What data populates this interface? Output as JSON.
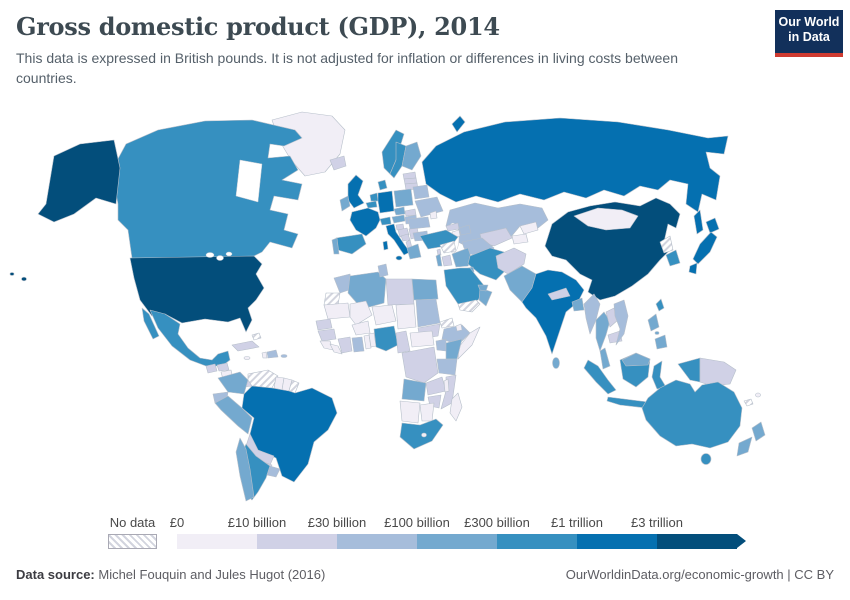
{
  "header": {
    "title": "Gross domestic product (GDP), 2014",
    "subtitle": "This data is expressed in British pounds. It is not adjusted for inflation or differences in living costs between countries.",
    "logo_line1": "Our World",
    "logo_line2": "in Data",
    "logo_bg": "#12305b",
    "logo_stripe": "#cf3b31"
  },
  "legend": {
    "no_data_label": "No data",
    "tick_labels": [
      "£0",
      "£10 billion",
      "£30 billion",
      "£100 billion",
      "£300 billion",
      "£1 trillion",
      "£3 trillion"
    ],
    "colors": [
      "#f1eef6",
      "#d0d1e6",
      "#a6bddb",
      "#74a9cf",
      "#3690c0",
      "#0570b0",
      "#034e7b"
    ],
    "no_data_hatch_color": "#d2d4de"
  },
  "footer": {
    "source_label": "Data source:",
    "source_text": " Michel Fouquin and Jules Hugot (2016)",
    "right_text": "OurWorldinData.org/economic-growth | CC BY"
  },
  "chart_data": {
    "type": "heatmap",
    "subtype": "choropleth_world_map",
    "title": "Gross domestic product (GDP), 2014",
    "unit": "British pounds",
    "bucket_ranges": [
      "£0–10 billion",
      "£10–30 billion",
      "£30–100 billion",
      "£100–300 billion",
      "£300 billion–1 trillion",
      "£1–3 trillion",
      "over £3 trillion"
    ],
    "no_data_value": -1,
    "countries": {
      "greenland": 0,
      "canada": 4,
      "united-states": 6,
      "mexico": 4,
      "guatemala": 1,
      "honduras": 1,
      "nicaragua": 0,
      "costa-rica": 1,
      "panama": 1,
      "cuba": 1,
      "haiti": 0,
      "dominican-republic": 2,
      "jamaica": 0,
      "puerto-rico": 2,
      "bahamas": -1,
      "colombia": 3,
      "venezuela": -1,
      "guyana": 0,
      "suriname": 0,
      "french-guiana": -1,
      "brazil": 5,
      "ecuador": 2,
      "peru": 3,
      "bolivia": 1,
      "paraguay": 1,
      "argentina": 4,
      "chile": 3,
      "uruguay": 2,
      "iceland": 1,
      "norway": 4,
      "sweden": 4,
      "finland": 3,
      "denmark": 4,
      "estonia": 1,
      "latvia": 1,
      "lithuania": 1,
      "united-kingdom": 5,
      "ireland": 3,
      "netherlands": 4,
      "belgium": 4,
      "germany": 5,
      "poland": 3,
      "belarus": 2,
      "ukraine": 2,
      "czechia": 3,
      "slovakia": 1,
      "austria": 3,
      "hungary": 2,
      "switzerland": 4,
      "france": 5,
      "spain": 4,
      "portugal": 3,
      "italy": 5,
      "slovenia": 1,
      "croatia": 1,
      "bosnia-and-herzegovina": 1,
      "serbia": 1,
      "albania": 1,
      "bulgaria": 2,
      "romania": 2,
      "greece": 3,
      "moldova": 0,
      "russia": 5,
      "kazakhstan": 2,
      "uzbekistan": 1,
      "turkmenistan": 2,
      "kyrgyzstan": 0,
      "tajikistan": 0,
      "afghanistan": 1,
      "pakistan": 3,
      "india": 5,
      "nepal": 1,
      "bangladesh": 3,
      "sri-lanka": 3,
      "china": 6,
      "mongolia": 0,
      "north-korea": -1,
      "south-korea": 4,
      "japan": 5,
      "taiwan": 4,
      "myanmar": 2,
      "thailand": 3,
      "laos": 1,
      "cambodia": 1,
      "vietnam": 2,
      "malaysia": 3,
      "indonesia": 4,
      "philippines": 3,
      "papua-new-guinea": 1,
      "australia": 4,
      "new-zealand": 3,
      "fiji": 0,
      "new-caledonia": -1,
      "turkey": 4,
      "syria": -1,
      "lebanon": 1,
      "israel": 3,
      "jordan": 1,
      "iraq": 3,
      "iran": 4,
      "kuwait": 3,
      "saudi-arabia": 4,
      "yemen": -1,
      "oman": 3,
      "united-arab-emirates": 3,
      "georgia": 1,
      "azerbaijan": 2,
      "armenia": 0,
      "morocco": 2,
      "western-sahara": -1,
      "algeria": 3,
      "tunisia": 2,
      "libya": 1,
      "egypt": 3,
      "mauritania": 0,
      "mali": 0,
      "niger": 0,
      "chad": 0,
      "sudan": 2,
      "south-sudan": 1,
      "eritrea": -1,
      "ethiopia": 2,
      "djibouti": 0,
      "somalia": 0,
      "senegal": 1,
      "guinea": 1,
      "sierra-leone": 0,
      "liberia": 0,
      "ivory-coast": 1,
      "ghana": 2,
      "togo": 0,
      "benin": 0,
      "burkina-faso": 0,
      "nigeria": 4,
      "cameroon": 1,
      "central-african-republic": 0,
      "dr-congo": 1,
      "uganda": 2,
      "kenya": 3,
      "tanzania": 2,
      "angola": 3,
      "zambia": 1,
      "malawi": 0,
      "mozambique": 1,
      "zimbabwe": 1,
      "namibia": 0,
      "botswana": 0,
      "south-africa": 4,
      "lesotho": 0,
      "madagascar": 0
    }
  }
}
